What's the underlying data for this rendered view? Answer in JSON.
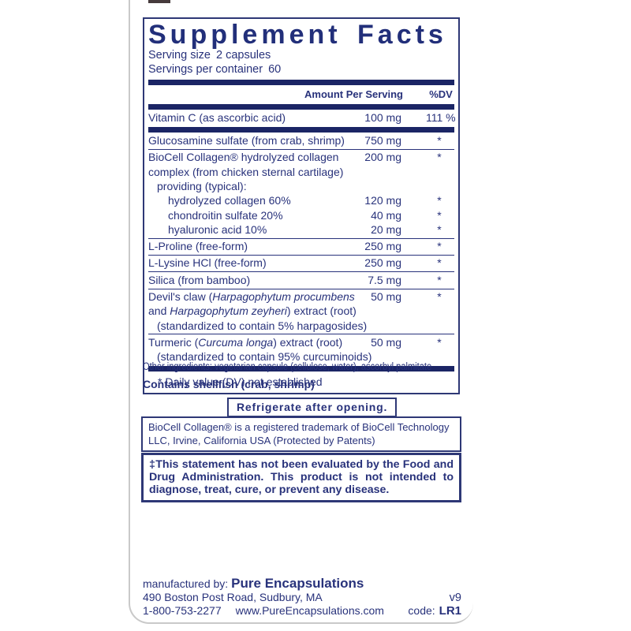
{
  "colors": {
    "navy_text": "#28327b",
    "navy_bar": "#1b2565",
    "box_border": "#2e3876",
    "edge_gray": "#c9c9c9"
  },
  "facts": {
    "title": "Supplement Facts",
    "serving_size_label": "Serving size",
    "serving_size_value": "2 capsules",
    "servings_label": "Servings per container",
    "servings_value": "60",
    "header": {
      "amount": "Amount Per Serving",
      "dv": "%DV"
    },
    "rows": [
      {
        "lines": [
          {
            "indent": 0,
            "segments": [
              {
                "t": "Vitamin C (as ascorbic acid)"
              }
            ],
            "amount": "100 mg",
            "dv": "111 %"
          }
        ],
        "sep": "thick"
      },
      {
        "lines": [
          {
            "indent": 0,
            "segments": [
              {
                "t": "Glucosamine sulfate (from crab, shrimp)"
              }
            ],
            "amount": "750 mg",
            "dv": "*"
          }
        ],
        "sep": "thin"
      },
      {
        "lines": [
          {
            "indent": 0,
            "segments": [
              {
                "t": "BioCell Collagen® hydrolyzed collagen"
              }
            ],
            "amount": "200 mg",
            "dv": "*"
          },
          {
            "indent": 0,
            "segments": [
              {
                "t": "complex (from chicken sternal cartilage)"
              }
            ]
          },
          {
            "indent": 1,
            "segments": [
              {
                "t": "providing (typical):"
              }
            ]
          },
          {
            "indent": 2,
            "segments": [
              {
                "t": "hydrolyzed collagen 60%"
              }
            ],
            "amount": "120 mg",
            "dv": "*"
          },
          {
            "indent": 2,
            "segments": [
              {
                "t": "chondroitin sulfate 20%"
              }
            ],
            "amount": "40 mg",
            "dv": "*"
          },
          {
            "indent": 2,
            "segments": [
              {
                "t": "hyaluronic acid 10%"
              }
            ],
            "amount": "20 mg",
            "dv": "*"
          }
        ],
        "sep": "thin"
      },
      {
        "lines": [
          {
            "indent": 0,
            "segments": [
              {
                "t": "L-Proline (free-form)"
              }
            ],
            "amount": "250 mg",
            "dv": "*"
          }
        ],
        "sep": "thin"
      },
      {
        "lines": [
          {
            "indent": 0,
            "segments": [
              {
                "t": "L-Lysine HCl (free-form)"
              }
            ],
            "amount": "250 mg",
            "dv": "*"
          }
        ],
        "sep": "thin"
      },
      {
        "lines": [
          {
            "indent": 0,
            "segments": [
              {
                "t": "Silica (from bamboo)"
              }
            ],
            "amount": "7.5 mg",
            "dv": "*"
          }
        ],
        "sep": "thin"
      },
      {
        "lines": [
          {
            "indent": 0,
            "segments": [
              {
                "t": "Devil's claw ("
              },
              {
                "t": "Harpagophytum procumbens",
                "i": true
              }
            ],
            "amount": "50 mg",
            "dv": "*"
          },
          {
            "indent": 0,
            "segments": [
              {
                "t": "and "
              },
              {
                "t": "Harpagophytum zeyheri",
                "i": true
              },
              {
                "t": ") extract (root)"
              }
            ]
          },
          {
            "indent": 1,
            "segments": [
              {
                "t": "(standardized to contain 5% harpagosides)"
              }
            ]
          }
        ],
        "sep": "thin"
      },
      {
        "lines": [
          {
            "indent": 0,
            "segments": [
              {
                "t": "Turmeric ("
              },
              {
                "t": "Curcuma longa",
                "i": true
              },
              {
                "t": ") extract (root)"
              }
            ],
            "amount": "50 mg",
            "dv": "*"
          },
          {
            "indent": 1,
            "segments": [
              {
                "t": "(standardized to contain 95% curcuminoids)"
              }
            ]
          }
        ],
        "sep": "thick"
      }
    ],
    "footnote": "* Daily value (DV) not established"
  },
  "other_ingredients": "Other ingredients: vegetarian capsule (cellulose, water), ascorbyl palmitate",
  "allergen": "Contains shellfish (crab, shrimp)",
  "refrigerate": "Refrigerate after opening.",
  "trademark_lines": [
    "BioCell Collagen® is a registered trademark of BioCell Technology",
    "LLC, Irvine, California USA (Protected by Patents)"
  ],
  "disclaimer": "‡This statement has not been evaluated by the Food and Drug Administration. This product is not intended to diagnose, treat, cure, or prevent any disease.",
  "footer": {
    "manufactured_by_label": "manufactured by:",
    "manufacturer": "Pure Encapsulations",
    "address": "490 Boston Post Road, Sudbury, MA",
    "phone": "1-800-753-2277",
    "website": "www.PureEncapsulations.com",
    "version": "v9",
    "code_label": "code:",
    "code_value": "LR1"
  }
}
